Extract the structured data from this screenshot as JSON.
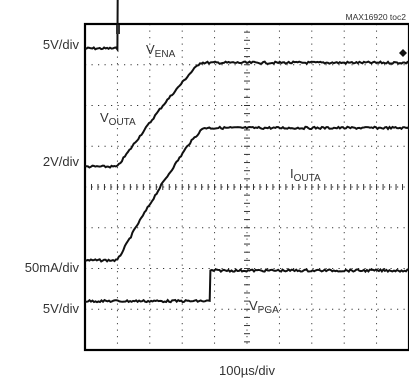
{
  "chart_data": {
    "type": "line",
    "figure_id": "MAX16920 toc2",
    "xlabel": "100µs/div",
    "x_divisions": 10,
    "y_divisions": 8,
    "grid": true,
    "channels": [
      {
        "name": "VENA",
        "label_main": "V",
        "label_sub": "ENA",
        "scale": "5V/div",
        "points": [
          [
            0,
            7.4
          ],
          [
            1.0,
            7.4
          ],
          [
            1.02,
            10.0
          ],
          [
            10,
            10.0
          ]
        ]
      },
      {
        "name": "VOUTA",
        "label_main": "V",
        "label_sub": "OUTA",
        "scale": "2V/div",
        "points": [
          [
            0,
            4.5
          ],
          [
            1.0,
            4.5
          ],
          [
            1.6,
            5.15
          ],
          [
            2.4,
            6.0
          ],
          [
            3.2,
            6.75
          ],
          [
            3.55,
            7.05
          ],
          [
            10,
            7.05
          ]
        ]
      },
      {
        "name": "IOUTA",
        "label_main": "I",
        "label_sub": "OUTA",
        "scale": "50mA/div",
        "points": [
          [
            0,
            2.2
          ],
          [
            1.0,
            2.2
          ],
          [
            1.6,
            3.05
          ],
          [
            2.4,
            4.1
          ],
          [
            3.2,
            5.05
          ],
          [
            3.65,
            5.45
          ],
          [
            10,
            5.45
          ]
        ]
      },
      {
        "name": "VPGA",
        "label_main": "V",
        "label_sub": "PGA",
        "scale": "5V/div",
        "points": [
          [
            0,
            1.2
          ],
          [
            3.85,
            1.2
          ],
          [
            3.87,
            1.95
          ],
          [
            10,
            1.95
          ]
        ]
      }
    ]
  }
}
